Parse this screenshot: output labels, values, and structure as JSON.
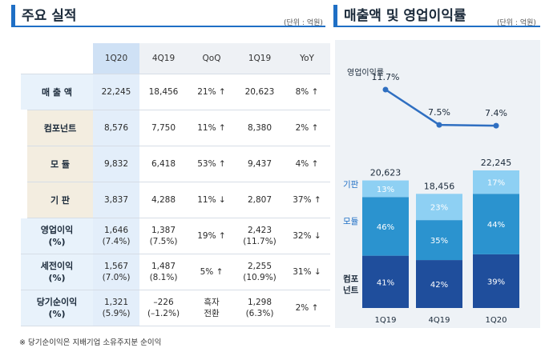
{
  "left": {
    "title": "주요 실적",
    "unit": "(단위 : 억원)",
    "columns": [
      "1Q20",
      "4Q19",
      "QoQ",
      "1Q19",
      "YoY"
    ],
    "rows": [
      {
        "label": "매 출 액",
        "type": "main",
        "cells": [
          "22,245",
          "18,456",
          "21% ↑",
          "20,623",
          "8% ↑"
        ]
      },
      {
        "label": "컴포넌트",
        "type": "sub",
        "cells": [
          "8,576",
          "7,750",
          "11% ↑",
          "8,380",
          "2% ↑"
        ]
      },
      {
        "label": "모      듈",
        "type": "sub",
        "cells": [
          "9,832",
          "6,418",
          "53% ↑",
          "9,437",
          "4% ↑"
        ]
      },
      {
        "label": "기      판",
        "type": "sub",
        "cells": [
          "3,837",
          "4,288",
          "11% ↓",
          "2,807",
          "37% ↑"
        ]
      },
      {
        "label": "영업이익\n(%)",
        "type": "main",
        "cells": [
          "1,646\n(7.4%)",
          "1,387\n(7.5%)",
          "19% ↑",
          "2,423\n(11.7%)",
          "32% ↓"
        ]
      },
      {
        "label": "세전이익\n(%)",
        "type": "main",
        "cells": [
          "1,567\n(7.0%)",
          "1,487\n(8.1%)",
          "5% ↑",
          "2,255\n(10.9%)",
          "31% ↓"
        ]
      },
      {
        "label": "당기순이익\n(%)",
        "type": "main",
        "cells": [
          "1,321\n(5.9%)",
          "–226\n(–1.2%)",
          "흑자\n전환",
          "1,298\n(6.3%)",
          "2% ↑"
        ]
      }
    ],
    "footnote": "※ 당기순이익은 지배기업 소유주지분 순이익"
  },
  "right": {
    "title": "매출액 및 영업이익률",
    "unit": "(단위 : 억원)"
  },
  "chart_data": {
    "type": "bar",
    "title": "매출액 및 영업이익률",
    "categories": [
      "1Q19",
      "4Q19",
      "1Q20"
    ],
    "totals": [
      20623,
      18456,
      22245
    ],
    "totals_labels": [
      "20,623",
      "18,456",
      "22,245"
    ],
    "series": [
      {
        "name": "컴포\n넌트",
        "values": [
          41,
          42,
          39
        ],
        "color": "#1f4e9c"
      },
      {
        "name": "모듈",
        "values": [
          46,
          35,
          44
        ],
        "color": "#2b93cf"
      },
      {
        "name": "기판",
        "values": [
          13,
          23,
          17
        ],
        "color": "#8ed0f3"
      }
    ],
    "line": {
      "name": "영업이익률",
      "values": [
        11.7,
        7.5,
        7.4
      ],
      "labels": [
        "11.7%",
        "7.5%",
        "7.4%"
      ],
      "color": "#2f6fc1"
    },
    "value_suffix": "%"
  }
}
